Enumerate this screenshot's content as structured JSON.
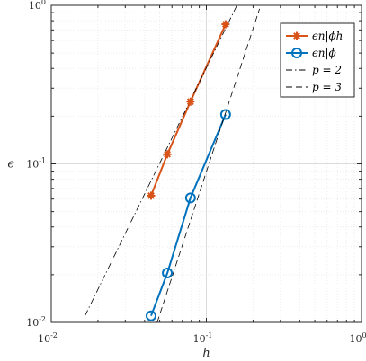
{
  "chart_data": {
    "type": "line",
    "xscale": "log",
    "yscale": "log",
    "xlim": [
      0.01,
      1
    ],
    "ylim": [
      0.01,
      1
    ],
    "xlabel": "h",
    "ylabel": "ϵ",
    "x_ticks": [
      {
        "value": 0.01,
        "mant": "10",
        "exp": "-2"
      },
      {
        "value": 0.1,
        "mant": "10",
        "exp": "-1"
      },
      {
        "value": 1,
        "mant": "10",
        "exp": "0"
      }
    ],
    "y_ticks": [
      {
        "value": 0.01,
        "mant": "10",
        "exp": "-2"
      },
      {
        "value": 0.1,
        "mant": "10",
        "exp": "-1"
      },
      {
        "value": 1,
        "mant": "10",
        "exp": "0"
      }
    ],
    "grid": true,
    "legend_position": "top-right",
    "series": [
      {
        "legend": "ϵn|ϕh",
        "color": "#D95319",
        "marker": "asterisk",
        "line": "solid",
        "x": [
          0.044,
          0.056,
          0.079,
          0.133
        ],
        "y": [
          0.063,
          0.115,
          0.247,
          0.76
        ]
      },
      {
        "legend": "ϵn|ϕ",
        "color": "#0072BD",
        "marker": "circle",
        "line": "solid",
        "x": [
          0.044,
          0.056,
          0.079,
          0.133
        ],
        "y": [
          0.011,
          0.0205,
          0.061,
          0.205
        ]
      },
      {
        "legend": "p = 2",
        "color": "#000000",
        "marker": "none",
        "line": "dashdot",
        "x": [
          0.0165,
          0.178
        ],
        "y": [
          0.011,
          1.28
        ]
      },
      {
        "legend": "p = 3",
        "color": "#000000",
        "marker": "none",
        "line": "dashed",
        "x": [
          0.046,
          0.22
        ],
        "y": [
          0.0087,
          0.95
        ]
      }
    ]
  }
}
